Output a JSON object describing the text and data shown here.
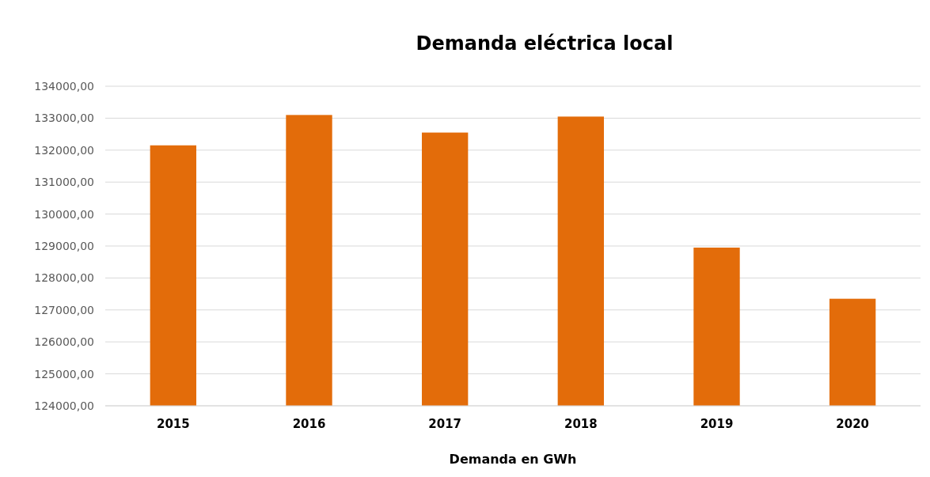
{
  "chart_data": {
    "type": "bar",
    "title": "Demanda eléctrica local",
    "xlabel": "Demanda en GWh",
    "categories": [
      "2015",
      "2016",
      "2017",
      "2018",
      "2019",
      "2020"
    ],
    "values": [
      132150,
      133100,
      132550,
      133050,
      128950,
      127350
    ],
    "color": "#e36c0a",
    "ylim": [
      124000,
      134000
    ],
    "yticks": [
      {
        "value": 124000,
        "label": "124000,00"
      },
      {
        "value": 125000,
        "label": "125000,00"
      },
      {
        "value": 126000,
        "label": "126000,00"
      },
      {
        "value": 127000,
        "label": "127000,00"
      },
      {
        "value": 128000,
        "label": "128000,00"
      },
      {
        "value": 129000,
        "label": "129000,00"
      },
      {
        "value": 130000,
        "label": "130000,00"
      },
      {
        "value": 131000,
        "label": "131000,00"
      },
      {
        "value": 132000,
        "label": "132000,00"
      },
      {
        "value": 133000,
        "label": "133000,00"
      },
      {
        "value": 134000,
        "label": "134000,00"
      }
    ],
    "grid": "y"
  }
}
